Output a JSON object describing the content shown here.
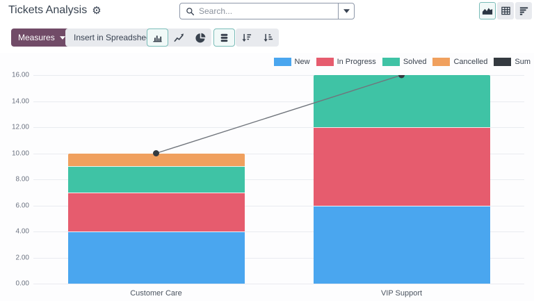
{
  "header": {
    "title": "Tickets Analysis",
    "search": {
      "placeholder": "Search..."
    },
    "view_switcher": [
      {
        "name": "graph-view",
        "icon": "area-chart-icon",
        "selected": true
      },
      {
        "name": "pivot-view",
        "icon": "pivot-table-icon",
        "selected": false
      },
      {
        "name": "list-view",
        "icon": "list-icon",
        "selected": false
      }
    ]
  },
  "toolbar": {
    "measures_label": "Measures",
    "insert_spreadsheet_label": "Insert in Spreadsheet",
    "chart_type_buttons": [
      {
        "name": "bar-chart-button",
        "icon": "bar-chart-icon",
        "selected": true
      },
      {
        "name": "line-chart-button",
        "icon": "line-chart-icon",
        "selected": false
      },
      {
        "name": "pie-chart-button",
        "icon": "pie-chart-icon",
        "selected": false
      }
    ],
    "stacked_button": {
      "name": "stacked-toggle-button",
      "icon": "stacked-icon",
      "selected": true
    },
    "sort_buttons": [
      {
        "name": "sort-descending-button",
        "icon": "sort-desc-icon",
        "selected": false
      },
      {
        "name": "sort-ascending-button",
        "icon": "sort-asc-icon",
        "selected": false
      }
    ]
  },
  "chart_data": {
    "type": "bar",
    "stacked": true,
    "title": "",
    "categories": [
      "Customer Care",
      "VIP Support"
    ],
    "series": [
      {
        "name": "New",
        "type": "bar",
        "color": "#4aa6ef",
        "values": [
          4,
          6
        ]
      },
      {
        "name": "In Progress",
        "type": "bar",
        "color": "#e65c6e",
        "values": [
          3,
          6
        ]
      },
      {
        "name": "Solved",
        "type": "bar",
        "color": "#3fc3a5",
        "values": [
          2,
          4
        ]
      },
      {
        "name": "Cancelled",
        "type": "bar",
        "color": "#f0a05e",
        "values": [
          1,
          0
        ]
      },
      {
        "name": "Sum",
        "type": "line",
        "color": "#343a40",
        "values": [
          10,
          16
        ]
      }
    ],
    "ylim": [
      0,
      16
    ],
    "yticks": [
      "0.00",
      "2.00",
      "4.00",
      "6.00",
      "8.00",
      "10.00",
      "12.00",
      "14.00",
      "16.00"
    ],
    "grid": true,
    "legend_position": "top-right",
    "line_color": "#70757c",
    "grid_color": "#e9ebf0"
  },
  "colors": {
    "accent": "#714B67",
    "selected_border": "#7abcb8",
    "selected_bg": "#f1f9f8"
  }
}
